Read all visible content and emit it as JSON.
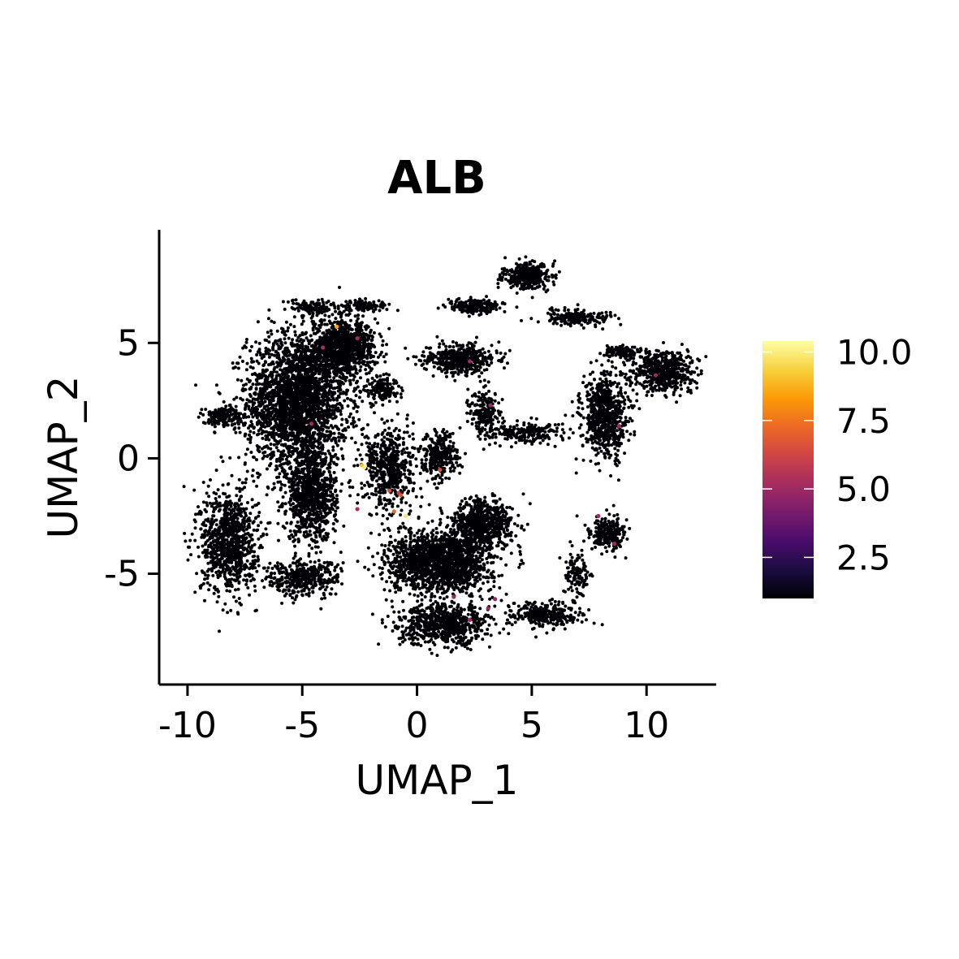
{
  "chart_data": {
    "type": "scatter",
    "title": "ALB",
    "xlabel": "UMAP_1",
    "ylabel": "UMAP_2",
    "xlim": [
      -11.2,
      13.0
    ],
    "ylim": [
      -9.8,
      9.9
    ],
    "x_ticks": [
      -10,
      -5,
      0,
      5,
      10
    ],
    "x_tick_labels": [
      "-10",
      "-5",
      "0",
      "5",
      "10"
    ],
    "y_ticks": [
      -5,
      0,
      5
    ],
    "y_tick_labels": [
      "-5",
      "0",
      "5"
    ],
    "grid": false,
    "legend": {
      "type": "colorbar",
      "placement": "right",
      "range": [
        1.0,
        10.4
      ],
      "ticks": [
        2.5,
        5.0,
        7.5,
        10.0
      ],
      "tick_labels": [
        "2.5",
        "5.0",
        "7.5",
        "10.0"
      ],
      "colormap": "inferno",
      "colors": [
        "#000004",
        "#1b0c41",
        "#4a0c6b",
        "#781c6d",
        "#a52c60",
        "#cf4446",
        "#ed6925",
        "#fb9b06",
        "#f7d13d",
        "#fcffa4"
      ]
    },
    "clusters": [
      {
        "cx": -5.2,
        "cy": 2.5,
        "rx": 2.0,
        "ry": 2.6,
        "n": 2600
      },
      {
        "cx": -3.2,
        "cy": 4.8,
        "rx": 1.3,
        "ry": 1.0,
        "n": 900
      },
      {
        "cx": -4.6,
        "cy": -1.6,
        "rx": 1.0,
        "ry": 1.8,
        "n": 900
      },
      {
        "cx": -8.2,
        "cy": -3.6,
        "rx": 1.1,
        "ry": 2.0,
        "n": 900
      },
      {
        "cx": -8.5,
        "cy": 1.8,
        "rx": 0.8,
        "ry": 0.4,
        "n": 150
      },
      {
        "cx": -5.0,
        "cy": -5.2,
        "rx": 1.5,
        "ry": 0.7,
        "n": 400
      },
      {
        "cx": 1.0,
        "cy": -4.5,
        "rx": 2.0,
        "ry": 1.2,
        "n": 1600
      },
      {
        "cx": 2.8,
        "cy": -2.9,
        "rx": 1.2,
        "ry": 1.0,
        "n": 700
      },
      {
        "cx": 1.2,
        "cy": -7.2,
        "rx": 1.8,
        "ry": 0.8,
        "n": 700
      },
      {
        "cx": 1.0,
        "cy": 0.1,
        "rx": 0.7,
        "ry": 0.9,
        "n": 300
      },
      {
        "cx": -1.2,
        "cy": -0.4,
        "rx": 1.0,
        "ry": 1.6,
        "n": 550
      },
      {
        "cx": -1.5,
        "cy": 3.0,
        "rx": 0.6,
        "ry": 0.5,
        "n": 150
      },
      {
        "cx": 1.9,
        "cy": 4.3,
        "rx": 1.4,
        "ry": 0.6,
        "n": 450
      },
      {
        "cx": 4.8,
        "cy": 7.9,
        "rx": 0.9,
        "ry": 0.5,
        "n": 350
      },
      {
        "cx": 8.2,
        "cy": 1.8,
        "rx": 0.9,
        "ry": 1.6,
        "n": 700
      },
      {
        "cx": 10.8,
        "cy": 3.8,
        "rx": 1.2,
        "ry": 0.8,
        "n": 550
      },
      {
        "cx": 8.3,
        "cy": -3.3,
        "rx": 0.7,
        "ry": 0.7,
        "n": 250
      },
      {
        "cx": 5.5,
        "cy": -6.8,
        "rx": 1.5,
        "ry": 0.5,
        "n": 300
      },
      {
        "cx": 3.0,
        "cy": 1.9,
        "rx": 0.6,
        "ry": 0.9,
        "n": 200
      },
      {
        "cx": 4.8,
        "cy": 1.1,
        "rx": 1.5,
        "ry": 0.4,
        "n": 220
      },
      {
        "cx": 2.5,
        "cy": 6.6,
        "rx": 1.0,
        "ry": 0.3,
        "n": 220
      },
      {
        "cx": 7.0,
        "cy": 6.1,
        "rx": 1.5,
        "ry": 0.3,
        "n": 200
      },
      {
        "cx": 9.0,
        "cy": 4.6,
        "rx": 0.8,
        "ry": 0.25,
        "n": 100
      },
      {
        "cx": -4.5,
        "cy": 6.5,
        "rx": 1.0,
        "ry": 0.3,
        "n": 120
      },
      {
        "cx": -2.2,
        "cy": 6.6,
        "rx": 0.9,
        "ry": 0.25,
        "n": 100
      },
      {
        "cx": 7.0,
        "cy": -5.0,
        "rx": 0.5,
        "ry": 0.9,
        "n": 120
      }
    ],
    "highlighted_points": [
      {
        "x": -3.5,
        "y": 5.7,
        "v": 8.5
      },
      {
        "x": -4.1,
        "y": 4.8,
        "v": 5.2
      },
      {
        "x": -2.6,
        "y": 5.2,
        "v": 5.0
      },
      {
        "x": -4.6,
        "y": 1.5,
        "v": 5.0
      },
      {
        "x": -2.4,
        "y": -0.3,
        "v": 9.0
      },
      {
        "x": -2.3,
        "y": -0.4,
        "v": 10.0
      },
      {
        "x": 1.0,
        "y": -0.5,
        "v": 6.5
      },
      {
        "x": -1.2,
        "y": -1.4,
        "v": 6.5
      },
      {
        "x": -0.8,
        "y": -1.5,
        "v": 6.0
      },
      {
        "x": -0.7,
        "y": -1.6,
        "v": 6.8
      },
      {
        "x": -1.0,
        "y": -2.3,
        "v": 7.2
      },
      {
        "x": -0.5,
        "y": -2.5,
        "v": 9.8
      },
      {
        "x": -2.6,
        "y": -2.2,
        "v": 5.3
      },
      {
        "x": 2.3,
        "y": 4.2,
        "v": 5.0
      },
      {
        "x": 3.2,
        "y": 2.3,
        "v": 5.0
      },
      {
        "x": 10.4,
        "y": 3.6,
        "v": 5.0
      },
      {
        "x": 8.8,
        "y": 1.4,
        "v": 5.0
      },
      {
        "x": 7.9,
        "y": -2.5,
        "v": 5.0
      },
      {
        "x": 8.6,
        "y": -3.7,
        "v": 5.0
      },
      {
        "x": 1.6,
        "y": -6.0,
        "v": 5.0
      },
      {
        "x": 3.1,
        "y": -6.5,
        "v": 5.0
      },
      {
        "x": 3.4,
        "y": -6.1,
        "v": 5.0
      },
      {
        "x": 2.3,
        "y": -7.0,
        "v": 5.0
      }
    ]
  }
}
